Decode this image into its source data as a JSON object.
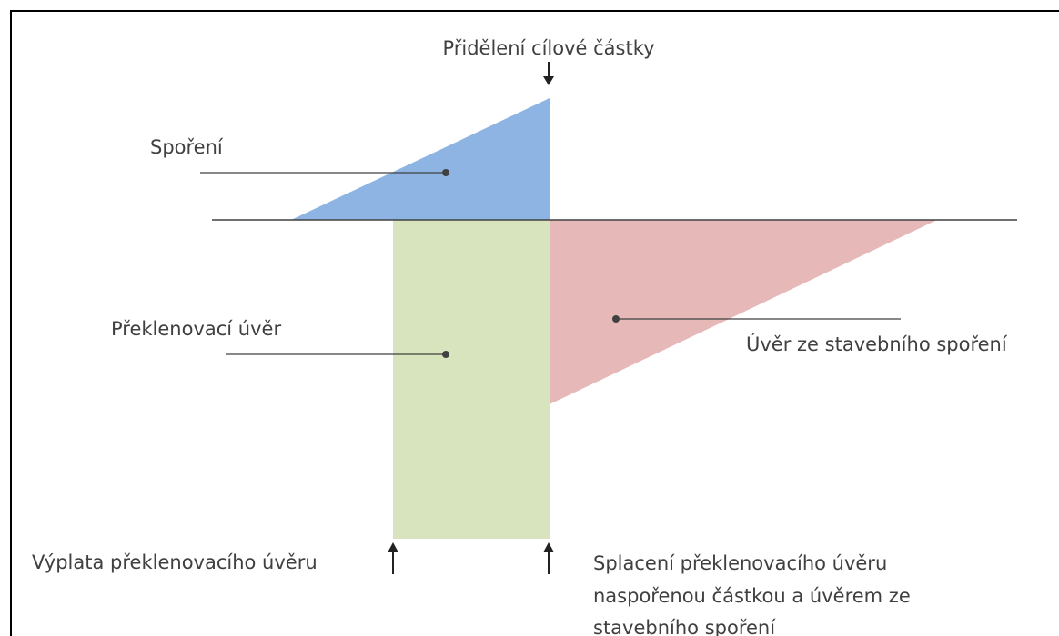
{
  "labels": {
    "allocation": "Přidělení cílové částky",
    "saving": "Spoření",
    "bridging_loan": "Překlenovací úvěr",
    "building_loan": "Úvěr ze stavebního spoření",
    "payout": "Výplata překlenovacího úvěru",
    "repayment": [
      "Splacení překlenovacího úvěru",
      "naspořenou částkou a úvěrem ze",
      "stavebního spoření"
    ]
  }
}
